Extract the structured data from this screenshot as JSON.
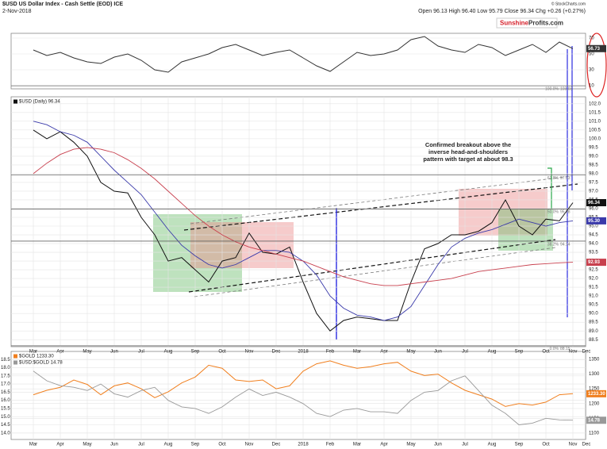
{
  "header": {
    "title": "$USD US Dollar Index - Cash Settle (EOD) ICE",
    "date": "2-Nov-2018",
    "quote": "Open 96.13 High 96.40 Low 95.79 Close 96.34 Chg +0.26 (+0.27%)",
    "source": "© StockCharts.com",
    "logo_a": "Sunshine",
    "logo_b": "Profits.com"
  },
  "chart_data": [
    {
      "type": "line",
      "ylim": [
        6,
        76
      ],
      "yticks": [
        70,
        50,
        30,
        10
      ],
      "series": [
        {
          "color": "#333333",
          "values": [
            55,
            48,
            52,
            45,
            40,
            38,
            46,
            50,
            42,
            30,
            27,
            40,
            45,
            50,
            58,
            62,
            55,
            48,
            52,
            55,
            45,
            35,
            28,
            40,
            52,
            48,
            50,
            55,
            68,
            72,
            60,
            55,
            52,
            62,
            58,
            48,
            55,
            62,
            52,
            65,
            56.73,
            null
          ]
        }
      ]
    },
    {
      "type": "line",
      "ylim": [
        88.1,
        102.4
      ],
      "yticks": [
        {
          "value": 102,
          "label": "102.0"
        },
        101.5,
        {
          "value": 101,
          "label": "101.0"
        },
        100.5,
        {
          "value": 100,
          "label": "100.0"
        },
        99.5,
        {
          "value": 99,
          "label": "99.0"
        },
        98.5,
        {
          "value": 98,
          "label": "98.0"
        },
        97.5,
        {
          "value": 97,
          "label": "97.0"
        },
        96.5,
        {
          "value": 96,
          "label": "96.0"
        },
        95.5,
        {
          "value": 95,
          "label": "95.0"
        },
        94.5,
        {
          "value": 94,
          "label": "94.0"
        },
        93.5,
        {
          "value": 93,
          "label": "93.0"
        },
        92.5,
        {
          "value": 92,
          "label": "92.0"
        },
        91.5,
        {
          "value": 91,
          "label": "91.0"
        },
        90.5,
        {
          "value": 90,
          "label": "90.0"
        },
        89.5,
        {
          "value": 89,
          "label": "89.0"
        },
        88.5
      ],
      "grid": true,
      "categories": [
        "Mar",
        null,
        "Apr",
        null,
        "May",
        null,
        "Jun",
        null,
        "Jul",
        null,
        "Aug",
        null,
        "Sep",
        null,
        "Oct",
        null,
        "Nov",
        null,
        "Dec",
        null,
        "2018",
        null,
        "Feb",
        null,
        "Mar",
        null,
        "Apr",
        null,
        "May",
        null,
        "Jun",
        null,
        "Jul",
        null,
        "Aug",
        null,
        "Sep",
        null,
        "Oct",
        null,
        "Nov",
        "Dec"
      ],
      "series": [
        {
          "name": "$USD (Daily) 96.34",
          "color": "#111111",
          "values": [
            100.5,
            100.0,
            100.4,
            99.8,
            99.0,
            97.5,
            97.0,
            96.9,
            95.5,
            94.5,
            93.0,
            93.2,
            92.5,
            91.8,
            93.0,
            93.2,
            94.6,
            93.5,
            93.4,
            93.8,
            91.8,
            90.0,
            89.0,
            89.6,
            89.8,
            89.7,
            89.6,
            89.6,
            91.8,
            93.7,
            94.0,
            94.5,
            94.5,
            94.7,
            95.2,
            96.5,
            95.0,
            94.5,
            95.4,
            95.3,
            96.34,
            null
          ]
        },
        {
          "color": "#3a3aaa",
          "values": [
            101.0,
            100.8,
            100.4,
            100.2,
            99.8,
            99.0,
            98.2,
            97.5,
            96.8,
            95.8,
            94.8,
            93.9,
            93.3,
            92.8,
            92.6,
            92.8,
            93.2,
            93.6,
            93.6,
            93.5,
            93.0,
            92.2,
            91.0,
            90.3,
            89.9,
            89.8,
            89.6,
            89.8,
            90.4,
            91.6,
            92.8,
            93.8,
            94.3,
            94.6,
            94.8,
            95.1,
            95.4,
            95.2,
            95.0,
            95.2,
            95.3,
            null
          ],
          "value_labels": [
            null,
            null,
            null,
            null,
            null,
            null,
            null,
            null,
            null,
            null,
            null,
            null,
            null,
            null,
            null,
            null,
            null,
            null,
            null,
            null,
            null,
            null,
            null,
            null,
            null,
            null,
            null,
            null,
            null,
            null,
            null,
            null,
            null,
            null,
            null,
            null,
            null,
            null,
            null,
            null,
            "95.30",
            null
          ]
        },
        {
          "color": "#c8404e",
          "values": [
            98.0,
            98.6,
            99.1,
            99.4,
            99.5,
            99.4,
            99.2,
            98.8,
            98.3,
            97.7,
            97.0,
            96.3,
            95.6,
            95.0,
            94.5,
            94.1,
            93.8,
            93.6,
            93.4,
            93.2,
            93.0,
            92.7,
            92.4,
            92.1,
            91.9,
            91.7,
            91.6,
            91.6,
            91.7,
            91.8,
            91.9,
            92.0,
            92.2,
            92.4,
            92.5,
            92.6,
            92.7,
            92.8,
            92.85,
            92.9,
            92.93,
            null
          ]
        }
      ],
      "fib_levels": [
        {
          "label": "100.0%",
          "value": 103.03
        },
        {
          "label": "61.8%",
          "value": 97.93
        },
        {
          "label": "50.0%",
          "value": 95.98
        },
        {
          "label": "38.2%",
          "value": 94.14
        },
        {
          "label": "0.0%",
          "value": 88.15
        }
      ],
      "annotation": [
        "Confirmed breakout above the",
        "inverse head-and-shoulders",
        "pattern with target at about 98.3"
      ]
    },
    {
      "type": "line",
      "ylim": [
        13.6,
        19.0
      ],
      "yticks": [
        18.5,
        {
          "value": 18,
          "label": "18.0"
        },
        17.5,
        {
          "value": 17,
          "label": "17.0"
        },
        16.5,
        {
          "value": 16,
          "label": "16.0"
        },
        15.5,
        {
          "value": 15,
          "label": "15.0"
        },
        14.5,
        {
          "value": 14,
          "label": "14.0"
        }
      ],
      "y2lim": [
        1078,
        1377
      ],
      "y2ticks": [
        1350,
        1300,
        1250,
        1200,
        1150,
        1100
      ],
      "grid": true,
      "categories": [
        "Mar",
        null,
        "Apr",
        null,
        "May",
        null,
        "Jun",
        null,
        "Jul",
        null,
        "Aug",
        null,
        "Sep",
        null,
        "Oct",
        null,
        "Nov",
        null,
        "Dec",
        null,
        "2018",
        null,
        "Feb",
        null,
        "Mar",
        null,
        "Apr",
        null,
        "May",
        null,
        "Jun",
        null,
        "Jul",
        null,
        "Aug",
        null,
        "Sep",
        null,
        "Oct",
        null,
        "Nov",
        "Dec"
      ],
      "series": [
        {
          "name": "$GOLD 1233.30",
          "color": "#f07f1e",
          "axis": "y2",
          "values": [
            1230,
            1245,
            1255,
            1280,
            1265,
            1230,
            1260,
            1270,
            1250,
            1220,
            1240,
            1270,
            1290,
            1330,
            1320,
            1280,
            1275,
            1280,
            1250,
            1260,
            1310,
            1335,
            1345,
            1330,
            1320,
            1325,
            1335,
            1340,
            1310,
            1295,
            1300,
            1270,
            1245,
            1230,
            1215,
            1190,
            1200,
            1195,
            1205,
            1230,
            1233.3,
            null
          ],
          "value_labels": [
            null,
            null,
            null,
            null,
            null,
            null,
            null,
            null,
            null,
            null,
            null,
            null,
            null,
            null,
            null,
            null,
            null,
            null,
            null,
            null,
            null,
            null,
            null,
            null,
            null,
            null,
            null,
            null,
            null,
            null,
            null,
            null,
            null,
            null,
            null,
            null,
            null,
            null,
            null,
            null,
            "1233.30",
            null
          ]
        },
        {
          "name": "$USD:$GOLD 14.78",
          "color": "#999999",
          "values": [
            17.8,
            17.2,
            16.9,
            16.8,
            16.6,
            17.0,
            16.4,
            16.2,
            16.6,
            16.8,
            16.0,
            15.6,
            15.5,
            15.2,
            15.6,
            16.2,
            16.7,
            16.3,
            16.5,
            16.2,
            15.8,
            15.2,
            15.0,
            15.4,
            15.5,
            15.3,
            15.3,
            15.2,
            16.0,
            16.5,
            16.6,
            17.2,
            17.5,
            16.6,
            15.7,
            15.2,
            14.5,
            14.6,
            14.9,
            14.8,
            14.78,
            null
          ]
        }
      ]
    }
  ]
}
